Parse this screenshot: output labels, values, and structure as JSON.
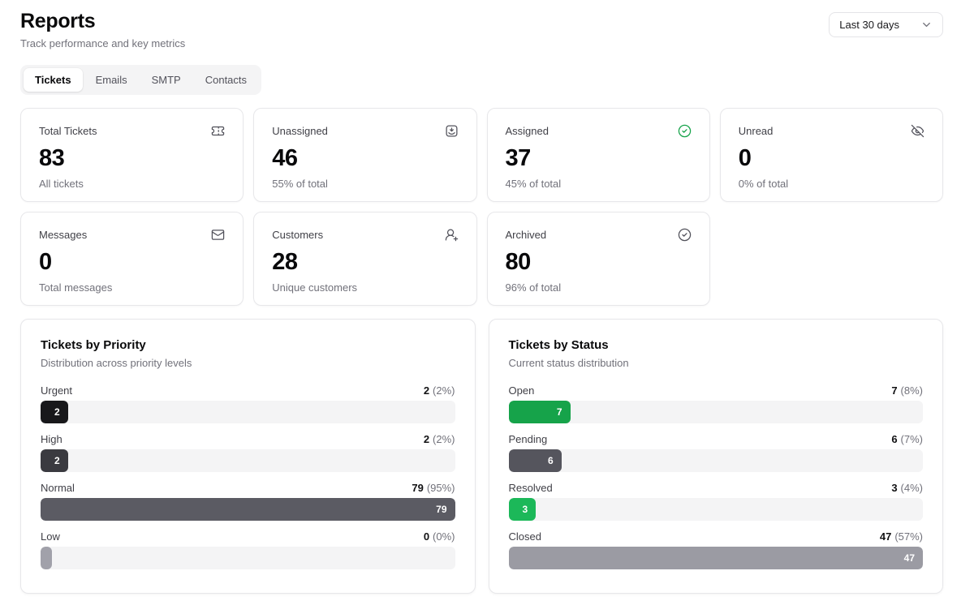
{
  "header": {
    "title": "Reports",
    "subtitle": "Track performance and key metrics"
  },
  "date_filter": {
    "value": "Last 30 days"
  },
  "tabs": [
    {
      "label": "Tickets",
      "active": true
    },
    {
      "label": "Emails",
      "active": false
    },
    {
      "label": "SMTP",
      "active": false
    },
    {
      "label": "Contacts",
      "active": false
    }
  ],
  "stat_cards": [
    {
      "label": "Total Tickets",
      "value": "83",
      "sub": "All tickets",
      "icon": "ticket-icon",
      "icon_color": "#52525b"
    },
    {
      "label": "Unassigned",
      "value": "46",
      "sub": "55% of total",
      "icon": "inbox-arrow-down-icon",
      "icon_color": "#52525b"
    },
    {
      "label": "Assigned",
      "value": "37",
      "sub": "45% of total",
      "icon": "circle-check-icon",
      "icon_color": "#16a34a"
    },
    {
      "label": "Unread",
      "value": "0",
      "sub": "0% of total",
      "icon": "eye-off-icon",
      "icon_color": "#52525b"
    },
    {
      "label": "Messages",
      "value": "0",
      "sub": "Total messages",
      "icon": "mail-icon",
      "icon_color": "#52525b"
    },
    {
      "label": "Customers",
      "value": "28",
      "sub": "Unique customers",
      "icon": "user-plus-icon",
      "icon_color": "#52525b"
    },
    {
      "label": "Archived",
      "value": "80",
      "sub": "96% of total",
      "icon": "circle-check-icon",
      "icon_color": "#52525b"
    }
  ],
  "chart_data": [
    {
      "type": "bar",
      "title": "Tickets by Priority",
      "subtitle": "Distribution across priority levels",
      "categories": [
        "Urgent",
        "High",
        "Normal",
        "Low"
      ],
      "values": [
        2,
        2,
        79,
        0
      ],
      "percents": [
        2,
        2,
        95,
        0
      ],
      "max": 79,
      "bar_colors": [
        "#18181b",
        "#3a3a40",
        "#5b5b63",
        "#a1a1aa"
      ]
    },
    {
      "type": "bar",
      "title": "Tickets by Status",
      "subtitle": "Current status distribution",
      "categories": [
        "Open",
        "Pending",
        "Resolved",
        "Closed"
      ],
      "values": [
        7,
        6,
        3,
        47
      ],
      "percents": [
        8,
        7,
        4,
        57
      ],
      "max": 47,
      "bar_colors": [
        "#16a34a",
        "#55555d",
        "#1cb859",
        "#9b9ba3"
      ]
    }
  ]
}
